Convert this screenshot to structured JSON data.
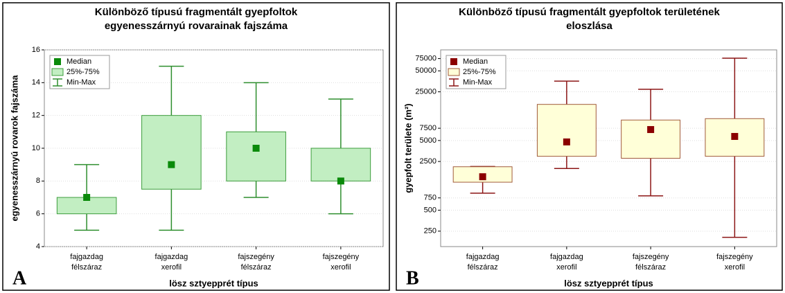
{
  "chart_data": [
    {
      "type": "box",
      "panel": "A",
      "title": [
        "Különböző típusú fragmentált gyepfoltok",
        "egyenesszárnyú rovarainak fajszáma"
      ],
      "y_label": "egyenesszárnyú rovarok fajszáma",
      "x_label": "lösz sztyepprét típus",
      "categories": [
        [
          "fajgazdag",
          "félszáraz"
        ],
        [
          "fajgazdag",
          "xerofil"
        ],
        [
          "fajszegény",
          "félszáraz"
        ],
        [
          "fajszegény",
          "xerofil"
        ]
      ],
      "min": [
        5,
        5,
        7,
        6
      ],
      "q1": [
        6,
        7.5,
        8,
        8
      ],
      "median": [
        7,
        9,
        10,
        8
      ],
      "q3": [
        7,
        12,
        11,
        10
      ],
      "max": [
        9,
        15,
        14,
        13
      ],
      "legend": [
        "Median",
        "25%-75%",
        "Min-Max"
      ],
      "colors": {
        "box": "#c2eec2",
        "box_edge": "#3c9c3c",
        "median": "#0a8a0a",
        "whisker": "#2e8e2e"
      },
      "log": false,
      "grid": true,
      "ylim": [
        4,
        16
      ],
      "yticks": [
        4,
        6,
        8,
        10,
        12,
        14,
        16
      ]
    },
    {
      "type": "box",
      "panel": "B",
      "title": [
        "Különböző típusú fragmentált gyepfoltok területének",
        "eloszlása"
      ],
      "y_label": "gyepfolt területe (m²)",
      "x_label": "lösz sztyepprét típus",
      "categories": [
        [
          "fajgazdag",
          "félszáraz"
        ],
        [
          "fajgazdag",
          "xerofil"
        ],
        [
          "fajszegény",
          "félszáraz"
        ],
        [
          "fajszegény",
          "xerofil"
        ]
      ],
      "min": [
        877,
        1980,
        803,
        204
      ],
      "q1": [
        1260,
        2970,
        2780,
        2970
      ],
      "median": [
        1510,
        4770,
        7180,
        5720
      ],
      "q3": [
        2100,
        16500,
        9840,
        10300
      ],
      "max": [
        2120,
        35600,
        27200,
        76000
      ],
      "legend": [
        "Median",
        "25%-75%",
        "Min-Max"
      ],
      "colors": {
        "box": "#ffffd8",
        "box_edge": "#a05a3a",
        "median": "#8b0000",
        "whisker": "#8b1414"
      },
      "log": true,
      "grid": true,
      "ylim": [
        150,
        100000
      ],
      "yticks": [
        250,
        500,
        750,
        2500,
        5000,
        7500,
        25000,
        50000,
        75000
      ]
    }
  ]
}
